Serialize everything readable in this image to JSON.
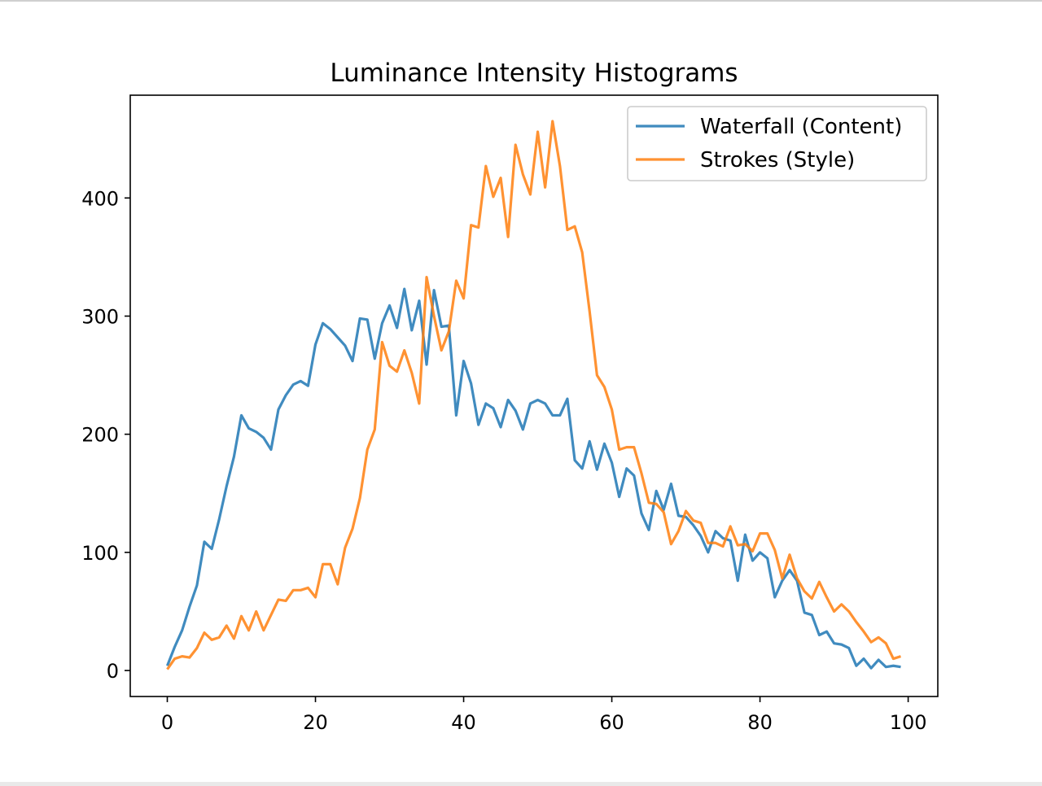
{
  "chart_data": {
    "type": "line",
    "title": "Luminance Intensity Histograms",
    "xlabel": "",
    "ylabel": "",
    "xlim": [
      -5,
      104
    ],
    "ylim": [
      -22,
      487
    ],
    "xticks": [
      0,
      20,
      40,
      60,
      80,
      100
    ],
    "yticks": [
      0,
      100,
      200,
      300,
      400
    ],
    "grid": false,
    "legend_position": "top-right",
    "x": [
      0,
      1,
      2,
      3,
      4,
      5,
      6,
      7,
      8,
      9,
      10,
      11,
      12,
      13,
      14,
      15,
      16,
      17,
      18,
      19,
      20,
      21,
      22,
      23,
      24,
      25,
      26,
      27,
      28,
      29,
      30,
      31,
      32,
      33,
      34,
      35,
      36,
      37,
      38,
      39,
      40,
      41,
      42,
      43,
      44,
      45,
      46,
      47,
      48,
      49,
      50,
      51,
      52,
      53,
      54,
      55,
      56,
      57,
      58,
      59,
      60,
      61,
      62,
      63,
      64,
      65,
      66,
      67,
      68,
      69,
      70,
      71,
      72,
      73,
      74,
      75,
      76,
      77,
      78,
      79,
      80,
      81,
      82,
      83,
      84,
      85,
      86,
      87,
      88,
      89,
      90,
      91,
      92,
      93,
      94,
      95,
      96,
      97,
      98,
      99
    ],
    "series": [
      {
        "name": "Waterfall (Content)",
        "color": "#1f77b4",
        "values": [
          4,
          20,
          34,
          54,
          72,
          109,
          103,
          128,
          156,
          181,
          216,
          205,
          202,
          197,
          187,
          221,
          233,
          242,
          245,
          241,
          276,
          294,
          289,
          282,
          275,
          262,
          298,
          297,
          264,
          294,
          309,
          290,
          323,
          288,
          313,
          259,
          322,
          291,
          292,
          216,
          262,
          243,
          208,
          226,
          222,
          206,
          229,
          220,
          204,
          226,
          229,
          226,
          216,
          216,
          230,
          178,
          171,
          194,
          170,
          192,
          176,
          147,
          171,
          165,
          133,
          119,
          152,
          136,
          158,
          131,
          130,
          123,
          114,
          100,
          118,
          112,
          110,
          76,
          115,
          93,
          100,
          95,
          62,
          76,
          85,
          76,
          49,
          47,
          30,
          33,
          23,
          22,
          19,
          4,
          10,
          2,
          9,
          3,
          4,
          3
        ]
      },
      {
        "name": "Strokes (Style)",
        "color": "#ff7f0e",
        "values": [
          1,
          10,
          12,
          11,
          19,
          32,
          26,
          28,
          38,
          27,
          46,
          34,
          50,
          34,
          47,
          60,
          59,
          68,
          68,
          70,
          62,
          90,
          90,
          73,
          104,
          120,
          146,
          187,
          204,
          278,
          258,
          253,
          271,
          252,
          226,
          333,
          300,
          271,
          287,
          330,
          315,
          377,
          375,
          427,
          401,
          417,
          367,
          445,
          420,
          403,
          456,
          409,
          465,
          427,
          373,
          376,
          354,
          304,
          250,
          240,
          221,
          187,
          189,
          189,
          167,
          142,
          141,
          134,
          107,
          118,
          135,
          127,
          125,
          108,
          108,
          105,
          122,
          106,
          107,
          101,
          116,
          116,
          102,
          78,
          98,
          78,
          67,
          61,
          75,
          62,
          50,
          56,
          50,
          41,
          33,
          24,
          28,
          23,
          10,
          12
        ]
      }
    ]
  }
}
